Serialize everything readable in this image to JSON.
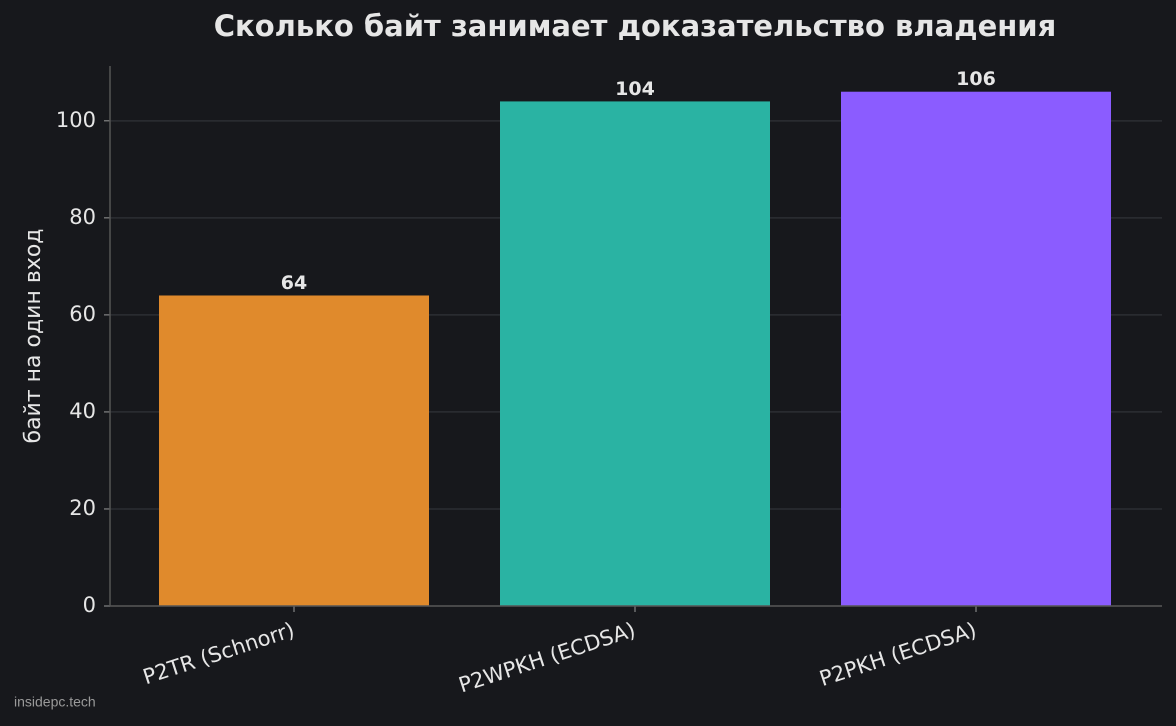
{
  "chart_data": {
    "type": "bar",
    "title": "Сколько байт занимает доказательство владения",
    "y_label": "байт на один вход",
    "categories": [
      "P2TR (Schnorr)",
      "P2WPKH (ECDSA)",
      "P2PKH (ECDSA)"
    ],
    "values": [
      64,
      104,
      106
    ],
    "colors": [
      "#e08a2c",
      "#2ab3a3",
      "#8b5cff"
    ],
    "ylim": [
      0,
      111.3
    ],
    "yticks": [
      0,
      20,
      40,
      60,
      80,
      100
    ],
    "grid": true,
    "watermark": "insidepc.tech"
  }
}
